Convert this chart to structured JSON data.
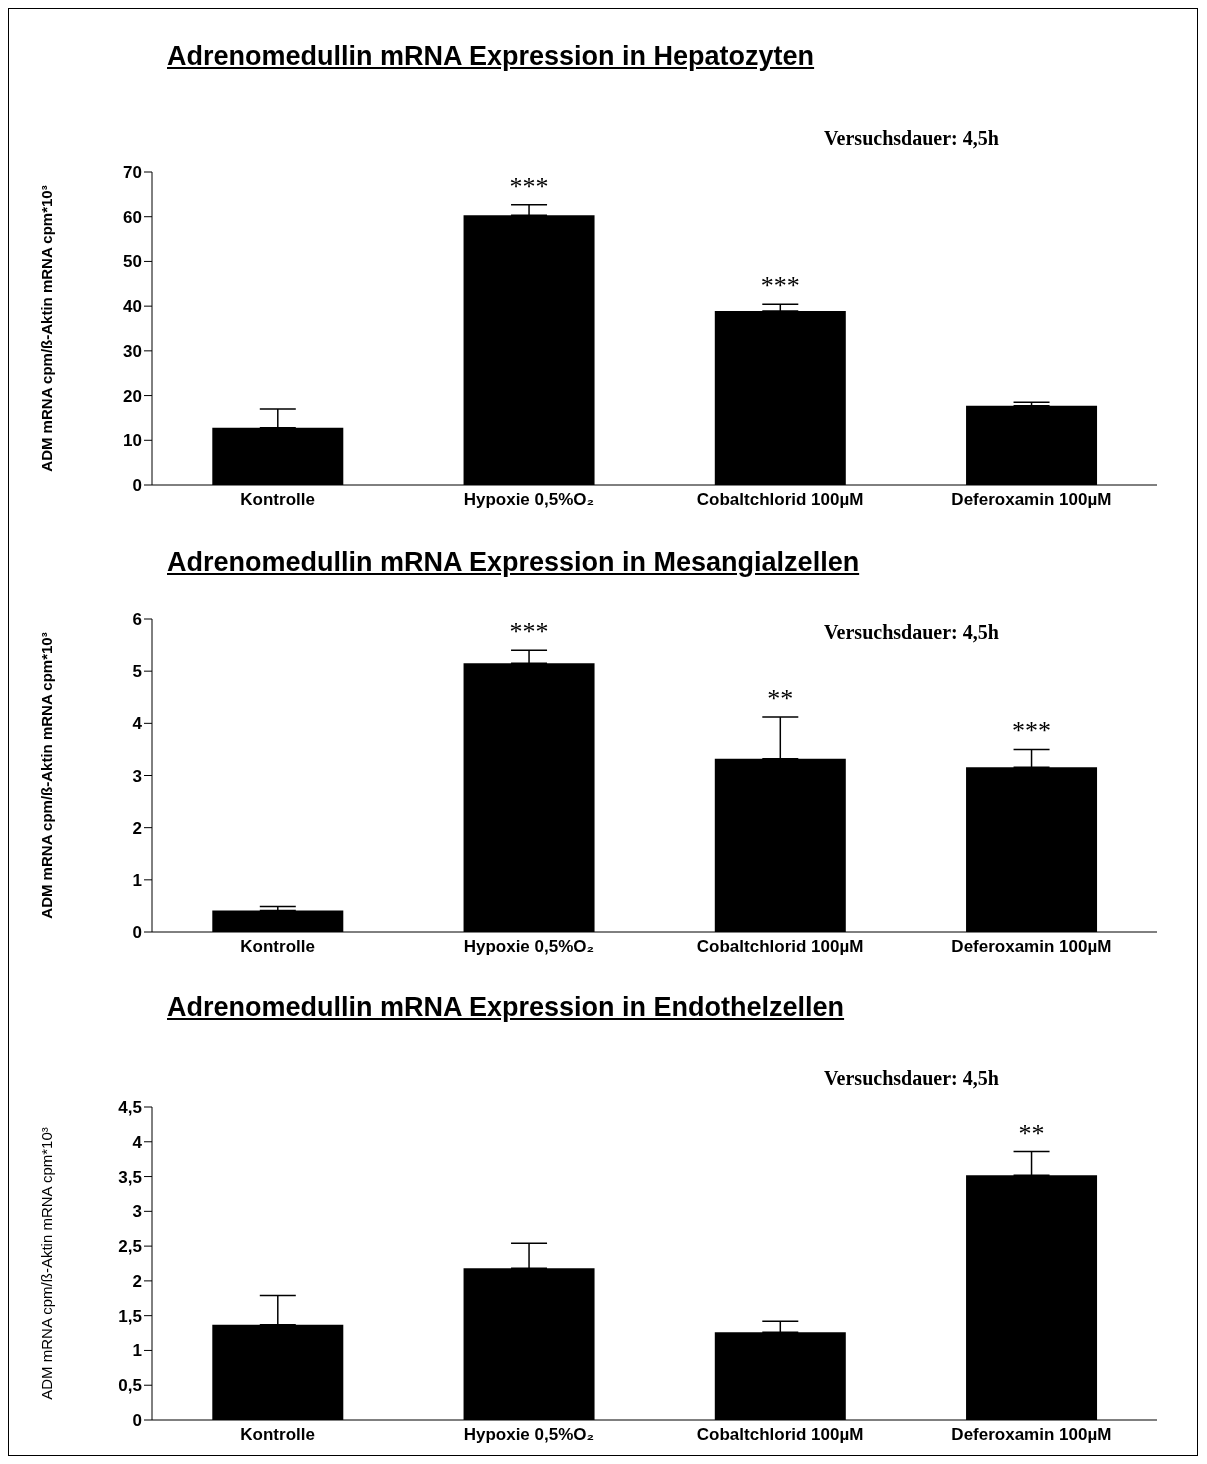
{
  "chart_data": [
    {
      "type": "bar",
      "title": "Adrenomedullin mRNA Expression in Hepatozyten",
      "ylabel": "ADM mRNA cpm/ß-Aktin mRNA cpm*10³",
      "categories": [
        "Kontrolle",
        "Hypoxie 0,5%O₂",
        "Cobaltchlorid 100µM",
        "Deferoxamin 100µM"
      ],
      "values": [
        12.8,
        60.3,
        38.9,
        17.7
      ],
      "errors": [
        [
          12.8,
          17
        ],
        [
          60.3,
          62.7
        ],
        [
          38.9,
          40.4
        ],
        [
          17.7,
          18.5
        ]
      ],
      "color": "#000000",
      "ylim": [
        0,
        70
      ],
      "yticks": [
        0,
        10,
        20,
        30,
        40,
        50,
        60,
        70
      ],
      "annotations": [
        "Versuchsdauer: 4,5h",
        {
          "text": "***",
          "x": "Hypoxie 0,5%O₂",
          "y": 62.7
        },
        {
          "text": "***",
          "x": "Cobaltchlorid 100µM",
          "y": 40.4
        }
      ]
    },
    {
      "type": "bar",
      "title": "Adrenomedullin mRNA Expression in Mesangialzellen",
      "ylabel": "ADM mRNA cpm/ß-Aktin mRNA cpm*10³",
      "categories": [
        "Kontrolle",
        "Hypoxie 0,5%O₂",
        "Cobaltchlorid 100µM",
        "Deferoxamin 100µM"
      ],
      "values": [
        0.41,
        5.15,
        3.32,
        3.16
      ],
      "errors": [
        [
          0.41,
          0.49
        ],
        [
          5.15,
          5.4
        ],
        [
          3.32,
          4.12
        ],
        [
          3.16,
          3.5
        ]
      ],
      "color": "#000000",
      "ylim": [
        0,
        6
      ],
      "yticks": [
        0,
        1,
        2,
        3,
        4,
        5,
        6
      ],
      "annotations": [
        "Versuchsdauer: 4,5h",
        {
          "text": "***",
          "x": "Hypoxie 0,5%O₂",
          "y": 5.4
        },
        {
          "text": "**",
          "x": "Cobaltchlorid 100µM",
          "y": 4.12
        },
        {
          "text": "***",
          "x": "Deferoxamin 100µM",
          "y": 3.5
        }
      ]
    },
    {
      "type": "bar",
      "title": "Adrenomedullin mRNA Expression in Endothelzellen",
      "ylabel": "ADM mRNA cpm/ß-Aktin mRNA cpm*10³",
      "categories": [
        "Kontrolle",
        "Hypoxie 0,5%O₂",
        "Cobaltchlorid 100µM",
        "Deferoxamin 100µM"
      ],
      "values": [
        1.37,
        2.18,
        1.26,
        3.52
      ],
      "errors": [
        [
          1.37,
          1.79
        ],
        [
          2.18,
          2.54
        ],
        [
          1.26,
          1.42
        ],
        [
          3.52,
          3.86
        ]
      ],
      "color": "#000000",
      "ylim": [
        0,
        4.5
      ],
      "yticks": [
        0,
        {
          "value": 0.5,
          "label": "0,5"
        },
        1,
        {
          "value": 1.5,
          "label": "1,5"
        },
        2,
        {
          "value": 2.5,
          "label": "2,5"
        },
        3,
        {
          "value": 3.5,
          "label": "3,5"
        },
        4,
        {
          "value": 4.5,
          "label": "4,5"
        }
      ],
      "annotations": [
        "Versuchsdauer: 4,5h",
        {
          "text": "**",
          "x": "Deferoxamin 100µM",
          "y": 3.86
        }
      ]
    }
  ]
}
